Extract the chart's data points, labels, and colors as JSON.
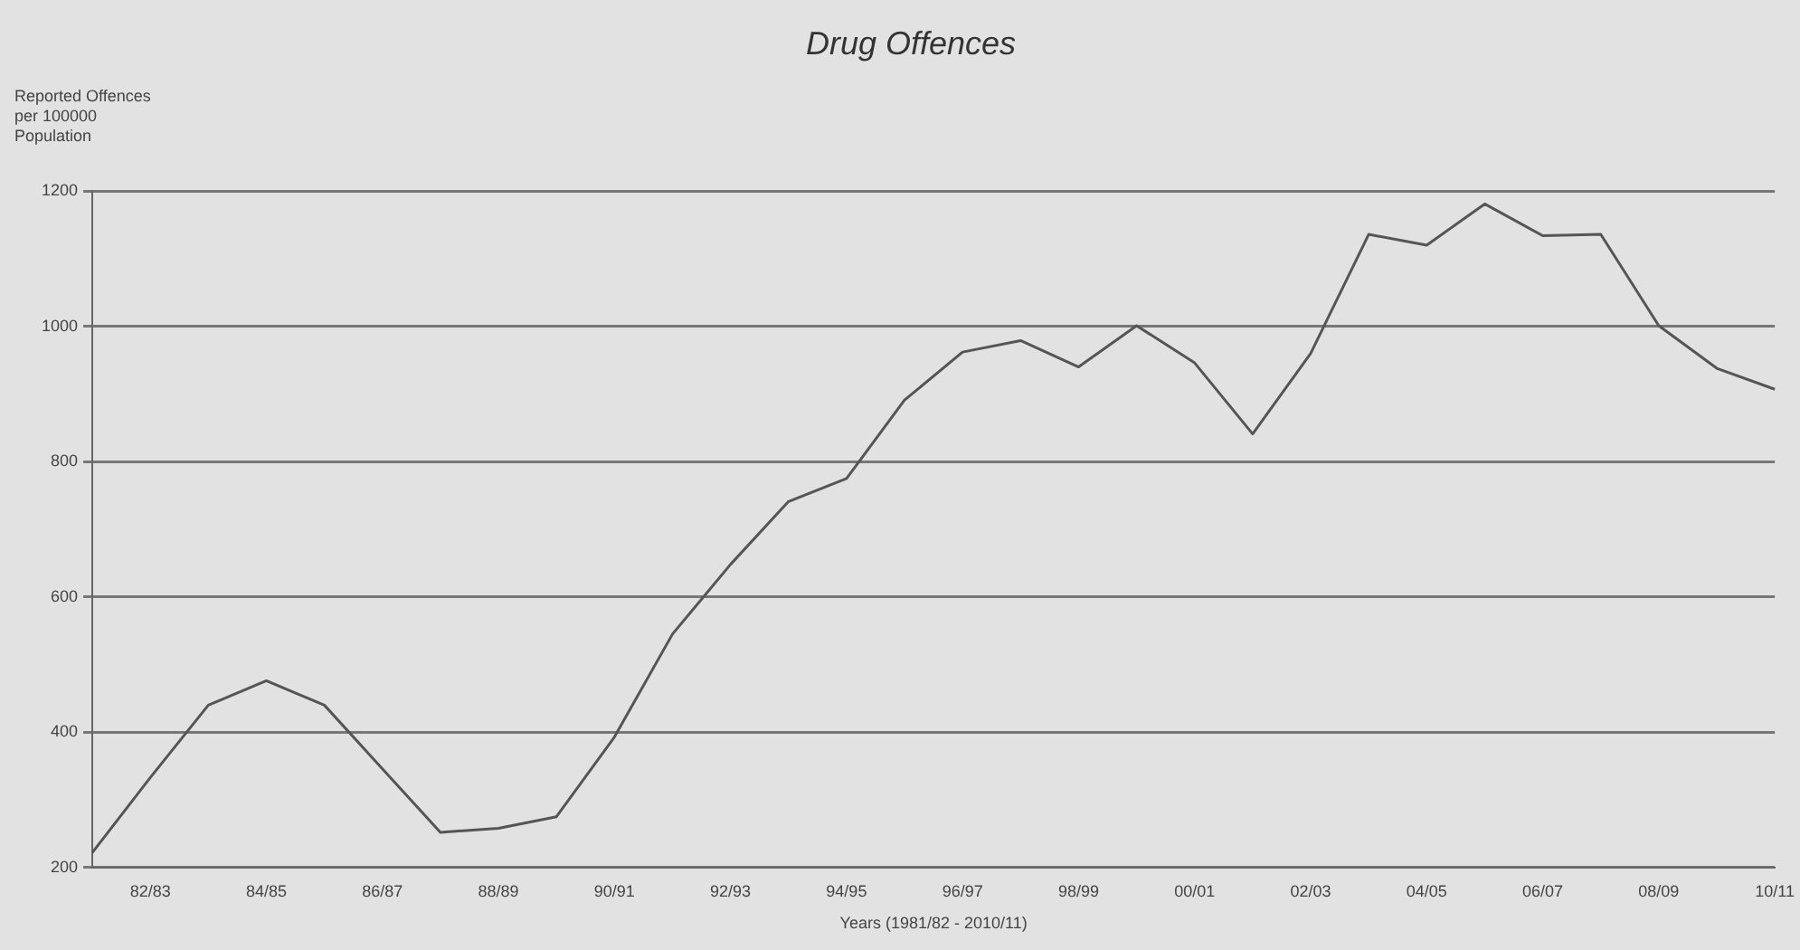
{
  "chart_data": {
    "type": "line",
    "title": "Drug Offences",
    "xlabel": "Years (1981/82 - 2010/11)",
    "ylabel": "Reported Offences per 100000 Population",
    "categories": [
      null,
      "82/83",
      null,
      "84/85",
      null,
      "86/87",
      null,
      "88/89",
      null,
      "90/91",
      null,
      "92/93",
      null,
      "94/95",
      null,
      "96/97",
      null,
      "98/99",
      null,
      "00/01",
      null,
      "02/03",
      null,
      "04/05",
      null,
      "06/07",
      null,
      "08/09",
      null,
      "10/11"
    ],
    "series": [
      {
        "color": "#555555",
        "values": [
          222,
          333,
          440,
          476,
          440,
          346,
          252,
          258,
          275,
          393,
          545,
          648,
          741,
          775,
          891,
          962,
          979,
          940,
          1001,
          946,
          841,
          960,
          1136,
          1120,
          1181,
          1134,
          1136,
          1001,
          938,
          907
        ]
      }
    ],
    "ylim": [
      200,
      1200
    ],
    "yticks": [
      200,
      400,
      600,
      800,
      1000,
      1200
    ],
    "grid": "y",
    "legend": false,
    "marker": "none",
    "line_style": "solid"
  }
}
